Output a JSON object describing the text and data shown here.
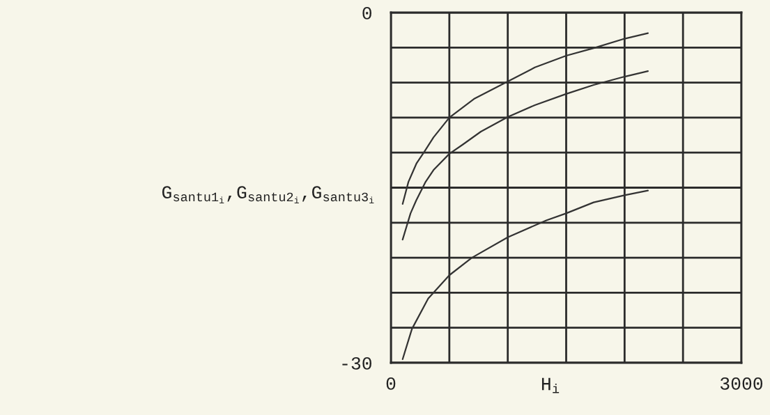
{
  "chart_data": {
    "type": "line",
    "xlabel": "H$_{i}$",
    "ylabel": "G$_{santu1}$$_{i}$,G$_{santu2}$$_{i}$,G$_{santu3}$$_{i}$",
    "series": [
      {
        "color": "#333333",
        "x": [
          100,
          150,
          220,
          287,
          364,
          500,
          711,
          1000,
          1232,
          1500,
          1735,
          2000,
          2200
        ],
        "values": [
          -16.4,
          -14.5,
          -12.9,
          -11.9,
          -10.7,
          -9.0,
          -7.4,
          -5.9,
          -4.7,
          -3.7,
          -3.05,
          -2.24,
          -1.77
        ]
      },
      {
        "color": "#333333",
        "x": [
          100,
          168,
          216,
          297,
          364,
          500,
          616,
          770,
          1000,
          1232,
          1500,
          1735,
          2000,
          2200
        ],
        "values": [
          -19.45,
          -17.2,
          -16.1,
          -14.5,
          -13.5,
          -12.1,
          -11.3,
          -10.2,
          -8.95,
          -7.93,
          -6.97,
          -6.2,
          -5.49,
          -5.02
        ]
      },
      {
        "color": "#333333",
        "x": [
          100,
          180,
          319,
          500,
          693,
          1000,
          1330,
          1500,
          1735,
          2000,
          2200
        ],
        "values": [
          -29.7,
          -27.1,
          -24.5,
          -22.5,
          -21.0,
          -19.25,
          -17.8,
          -17.2,
          -16.26,
          -15.65,
          -15.25
        ]
      }
    ],
    "xlim": [
      0,
      3000
    ],
    "xticks": [
      0,
      {
        "value": 500,
        "label": null
      },
      {
        "value": 1000,
        "label": null
      },
      {
        "value": 1500,
        "label": null
      },
      {
        "value": 2000,
        "label": null
      },
      {
        "value": 2500,
        "label": null
      },
      3000
    ],
    "ylim": [
      -30,
      0
    ],
    "yticks": [
      -30,
      {
        "value": -27,
        "label": null
      },
      {
        "value": -24,
        "label": null
      },
      {
        "value": -21,
        "label": null
      },
      {
        "value": -18,
        "label": null
      },
      {
        "value": -15,
        "label": null
      },
      {
        "value": -12,
        "label": null
      },
      {
        "value": -9,
        "label": null
      },
      {
        "value": -6,
        "label": null
      },
      {
        "value": -3,
        "label": null
      },
      0
    ],
    "grid": true,
    "line_style": "solid"
  }
}
